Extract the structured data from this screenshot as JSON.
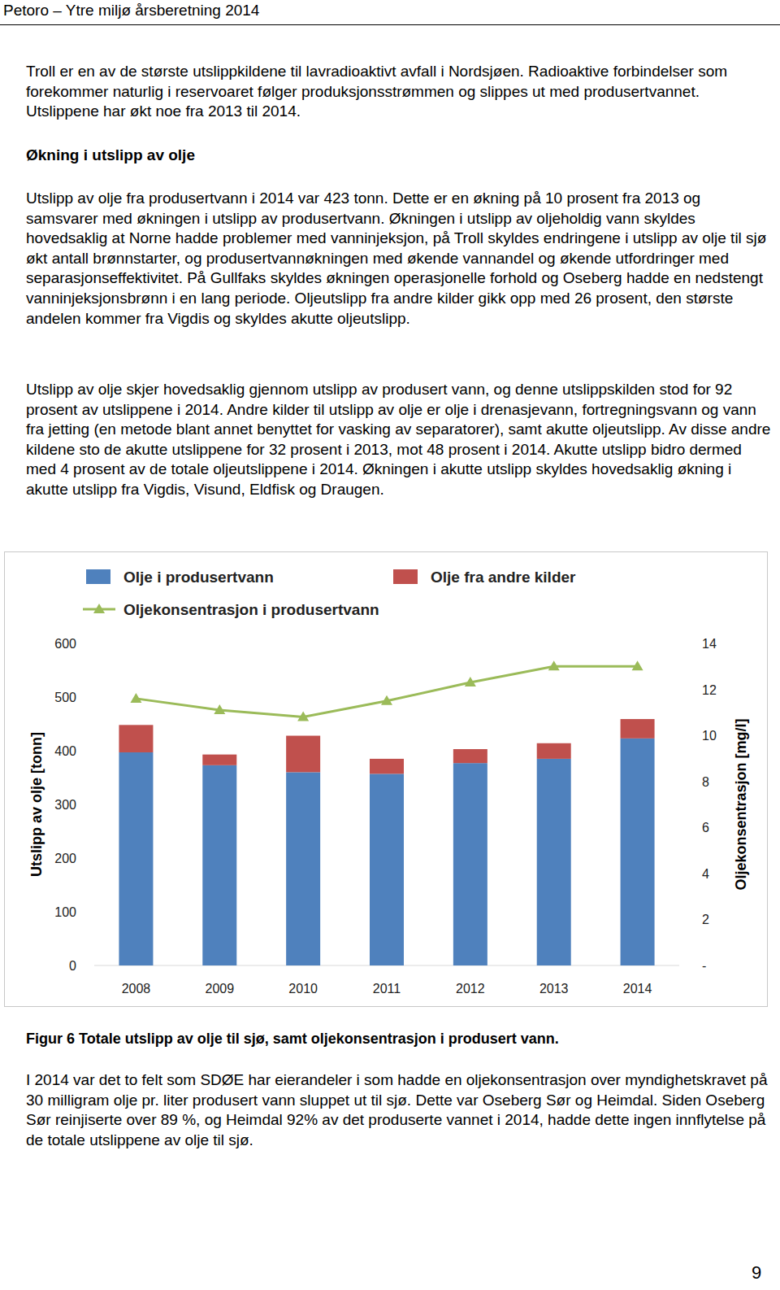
{
  "header": {
    "title": "Petoro – Ytre miljø årsberetning 2014"
  },
  "paragraphs_top": [
    "Troll er en av de største utslippkildene til lavradioaktivt avfall i Nordsjøen. Radioaktive forbindelser som forekommer naturlig i reservoaret følger produksjonsstrømmen og slippes ut med produsertvannet. Utslippene har økt noe fra 2013 til 2014."
  ],
  "heading": "Økning i utslipp av olje",
  "paragraphs": [
    "Utslipp av olje fra produsertvann i 2014 var 423 tonn. Dette er en økning på 10 prosent fra 2013 og samsvarer med økningen i utslipp av produsertvann. Økningen i utslipp av oljeholdig vann skyldes hovedsaklig at Norne hadde problemer med vanninjeksjon, på Troll skyldes endringene i utslipp av olje til sjø økt antall brønnstarter, og produsertvannøkningen med økende vannandel og økende utfordringer med separasjonseffektivitet. På Gullfaks skyldes økningen operasjonelle forhold og Oseberg hadde en nedstengt vanninjeksjonsbrønn i en lang periode. Oljeutslipp fra andre kilder gikk opp med 26 prosent, den største andelen kommer fra Vigdis og skyldes akutte oljeutslipp.",
    "Utslipp av olje skjer hovedsaklig gjennom utslipp av produsert vann, og denne utslippskilden stod for 92 prosent av utslippene i 2014. Andre kilder til utslipp av olje er olje i drenasjevann, fortregningsvann og vann fra jetting (en metode blant annet benyttet for vasking av separatorer), samt akutte oljeutslipp. Av disse andre kildene sto de akutte utslippene for 32 prosent i 2013, mot 48 prosent i 2014. Akutte utslipp bidro dermed med 4 prosent av de totale oljeutslippene i 2014. Økningen i akutte utslipp skyldes hovedsaklig økning i akutte utslipp fra Vigdis, Visund, Eldfisk og Draugen."
  ],
  "chart_data": {
    "type": "bar",
    "stacked": true,
    "legend": "top",
    "grid": false,
    "categories": [
      "2008",
      "2009",
      "2010",
      "2011",
      "2012",
      "2013",
      "2014"
    ],
    "y_label": "Utslipp av olje [tonn]",
    "y2_label": "Oljekonsentrasjon [mg/l]",
    "ylim": [
      0,
      600
    ],
    "yticks": [
      0,
      100,
      200,
      300,
      400,
      500,
      600
    ],
    "y2lim": [
      0,
      14
    ],
    "y2ticks": [
      {
        "value": 0,
        "label": "-"
      },
      2,
      4,
      6,
      8,
      10,
      12,
      14
    ],
    "series": [
      {
        "name": "Olje i produsertvann",
        "color": "#4f81bd",
        "type": "bar",
        "values": [
          397,
          373,
          360,
          357,
          377,
          385,
          423
        ]
      },
      {
        "name": "Olje fra andre kilder",
        "color": "#c0504d",
        "type": "bar",
        "values": [
          51,
          20,
          68,
          28,
          26,
          29,
          36
        ]
      },
      {
        "name": "Oljekonsentrasjon i produsertvann",
        "color": "#9bbb59",
        "type": "line",
        "axis": "y2",
        "marker": "triangle",
        "values": [
          11.6,
          11.1,
          10.8,
          11.5,
          12.3,
          13.0,
          13.0
        ]
      }
    ]
  },
  "caption": "Figur 6 Totale utslipp av olje til sjø, samt oljekonsentrasjon i produsert vann.",
  "paragraphs_bottom": [
    "I 2014 var det to felt som SDØE har eierandeler i som hadde en oljekonsentrasjon over myndighetskravet på 30 milligram olje pr. liter produsert vann sluppet ut til sjø.  Dette var Oseberg Sør og Heimdal. Siden Oseberg Sør reinjiserte over 89 %, og Heimdal 92% av det produserte vannet i 2014, hadde dette ingen innflytelse på de totale utslippene av olje til sjø."
  ],
  "page_number": "9"
}
